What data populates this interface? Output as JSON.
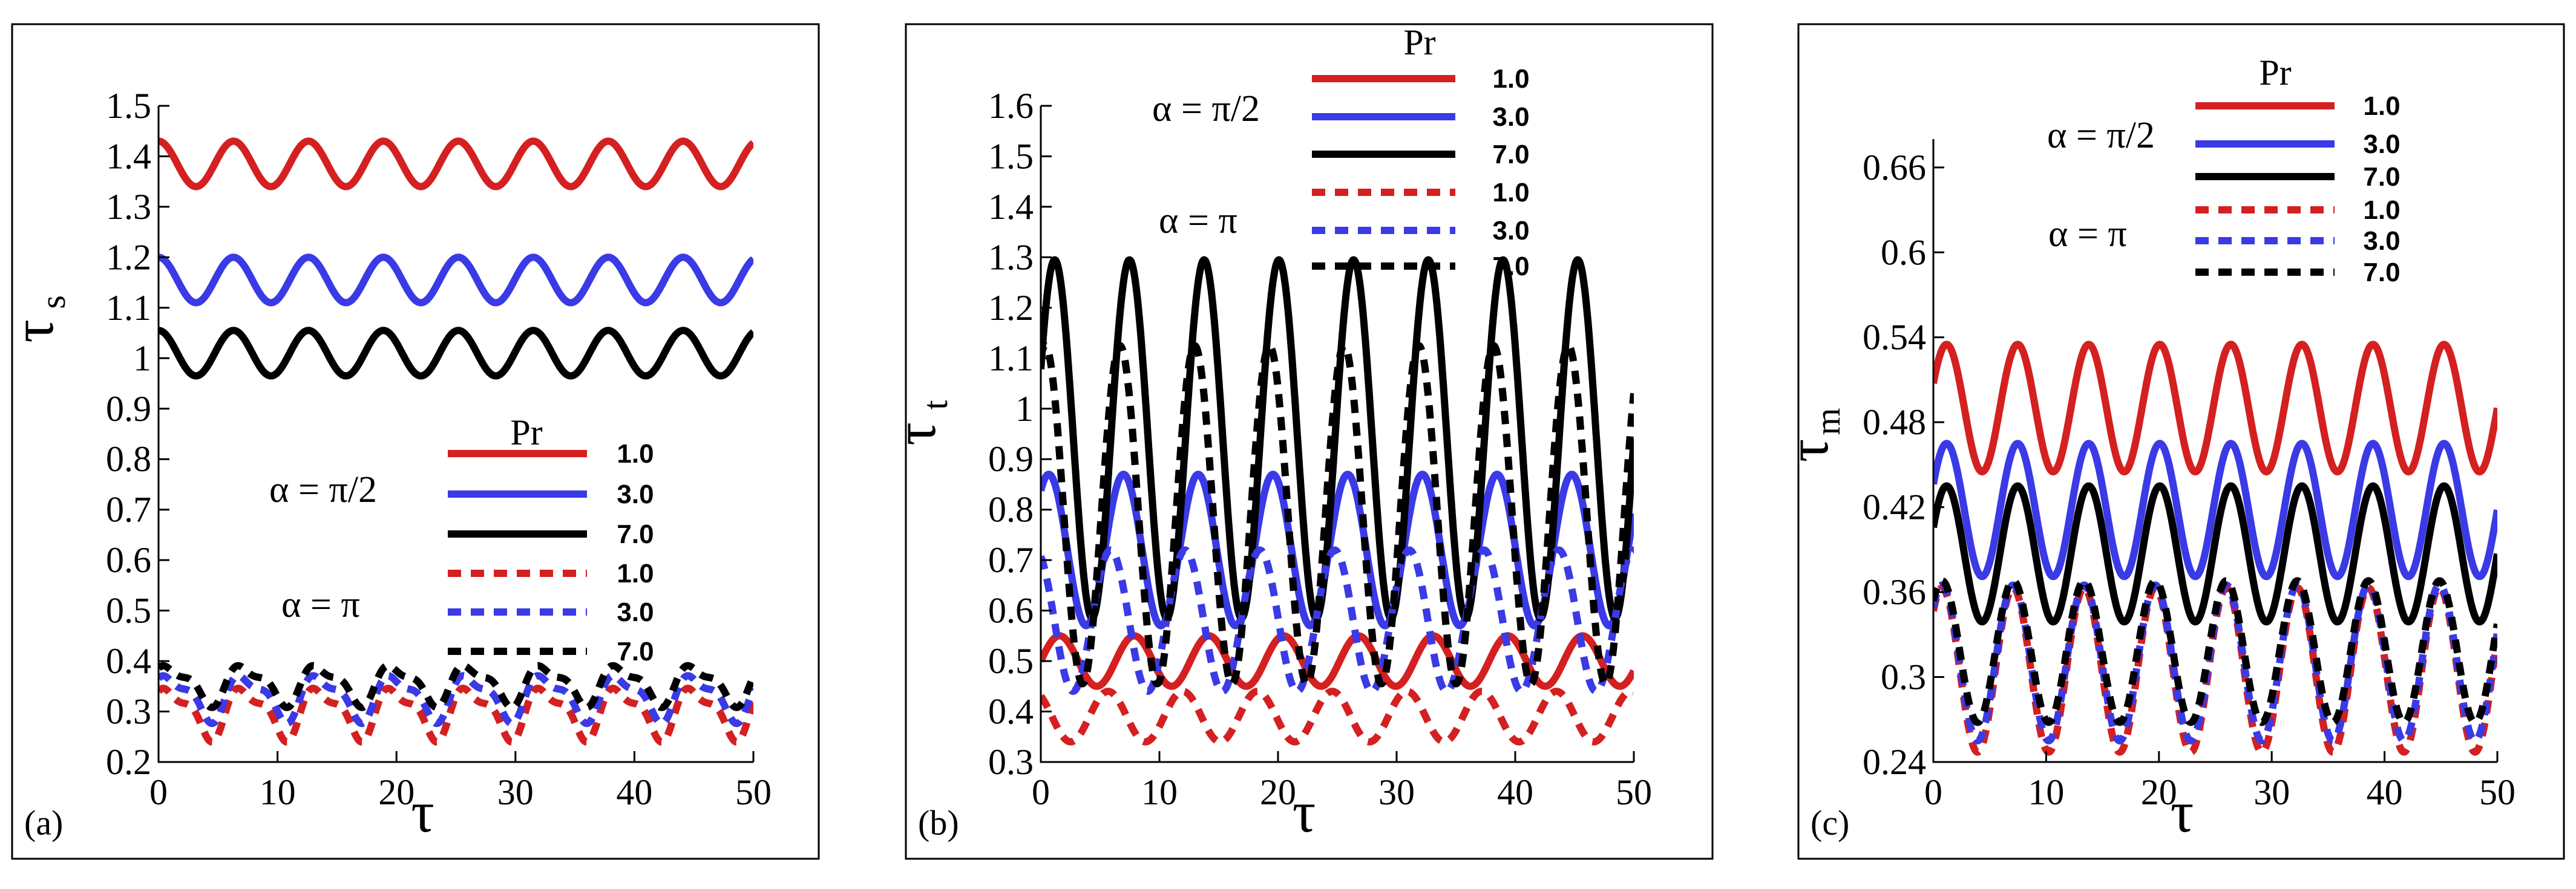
{
  "chart_data": [
    {
      "type": "line",
      "panel_label": "(a)",
      "xlabel": "τ",
      "ylabel": "τ",
      "ylabel_sub": "s",
      "xlim": [
        0,
        50
      ],
      "ylim": [
        0.2,
        1.5
      ],
      "xticks": [
        0,
        10,
        20,
        30,
        40,
        50
      ],
      "xtick_labels": [
        "0",
        "10",
        "20",
        "30",
        "40",
        "50"
      ],
      "yticks": [
        0.2,
        0.3,
        0.4,
        0.5,
        0.6,
        0.7,
        0.8,
        0.9,
        1.0,
        1.1,
        1.2,
        1.3,
        1.4,
        1.5
      ],
      "ytick_labels": [
        "0.2",
        "0.3",
        "0.4",
        "0.5",
        "0.6",
        "0.7",
        "0.8",
        "0.9",
        "1",
        "1.1",
        "1.2",
        "1.3",
        "1.4",
        "1.5"
      ],
      "legend_position": "middle-right",
      "legend": {
        "title": "Pr",
        "group1_label": "α = π/2",
        "group2_label": "α = π",
        "entries": [
          "1.0",
          "3.0",
          "7.0",
          "1.0",
          "3.0",
          "7.0"
        ]
      },
      "series": [
        {
          "name": "α = π/2, Pr = 1.0",
          "color": "#d42020",
          "style": "solid",
          "mean": 1.385,
          "amp": 0.045,
          "period": 6.3,
          "phase": 1.57,
          "harmonic": 0
        },
        {
          "name": "α = π/2, Pr = 3.0",
          "color": "#3a3ae6",
          "style": "solid",
          "mean": 1.155,
          "amp": 0.045,
          "period": 6.3,
          "phase": 1.57,
          "harmonic": 0
        },
        {
          "name": "α = π/2, Pr = 7.0",
          "color": "#000000",
          "style": "solid",
          "mean": 1.01,
          "amp": 0.045,
          "period": 6.3,
          "phase": 1.57,
          "harmonic": 0
        },
        {
          "name": "α = π, Pr = 1.0",
          "color": "#d42020",
          "style": "dashed",
          "mean": 0.3,
          "amp": 0.045,
          "period": 6.3,
          "phase": 0.5,
          "harmonic": 0.4
        },
        {
          "name": "α = π, Pr = 3.0",
          "color": "#3a3ae6",
          "style": "dashed",
          "mean": 0.33,
          "amp": 0.04,
          "period": 6.3,
          "phase": 0.5,
          "harmonic": 0.4
        },
        {
          "name": "α = π, Pr = 7.0",
          "color": "#000000",
          "style": "dashed",
          "mean": 0.355,
          "amp": 0.035,
          "period": 6.3,
          "phase": 0.5,
          "harmonic": 0.4
        }
      ]
    },
    {
      "type": "line",
      "panel_label": "(b)",
      "xlabel": "τ",
      "ylabel": "τ",
      "ylabel_sub": "t",
      "xlim": [
        0,
        50
      ],
      "ylim": [
        0.3,
        1.6
      ],
      "xticks": [
        0,
        10,
        20,
        30,
        40,
        50
      ],
      "xtick_labels": [
        "0",
        "10",
        "20",
        "30",
        "40",
        "50"
      ],
      "yticks": [
        0.3,
        0.4,
        0.5,
        0.6,
        0.7,
        0.8,
        0.9,
        1.0,
        1.1,
        1.2,
        1.3,
        1.4,
        1.5,
        1.6
      ],
      "ytick_labels": [
        "0.3",
        "0.4",
        "0.5",
        "0.6",
        "0.7",
        "0.8",
        "0.9",
        "1",
        "1.1",
        "1.2",
        "1.3",
        "1.4",
        "1.5",
        "1.6"
      ],
      "legend_position": "top-right",
      "legend": {
        "title": "Pr",
        "group1_label": "α = π/2",
        "group2_label": "α = π",
        "entries": [
          "1.0",
          "3.0",
          "7.0",
          "1.0",
          "3.0",
          "7.0"
        ]
      },
      "series": [
        {
          "name": "α = π/2, Pr = 1.0",
          "color": "#d42020",
          "style": "solid",
          "mean": 0.5,
          "amp": 0.05,
          "period": 6.3,
          "phase": 0.0,
          "harmonic": 0
        },
        {
          "name": "α = π/2, Pr = 3.0",
          "color": "#3a3ae6",
          "style": "solid",
          "mean": 0.72,
          "amp": 0.15,
          "period": 6.3,
          "phase": 0.9,
          "harmonic": 0
        },
        {
          "name": "α = π/2, Pr = 7.0",
          "color": "#000000",
          "style": "solid",
          "mean": 0.94,
          "amp": 0.355,
          "period": 6.3,
          "phase": 0.4,
          "harmonic": 0
        },
        {
          "name": "α = π, Pr = 1.0",
          "color": "#d42020",
          "style": "dashed",
          "mean": 0.39,
          "amp": 0.05,
          "period": 6.3,
          "phase": 2.2,
          "harmonic": 0
        },
        {
          "name": "α = π, Pr = 3.0",
          "color": "#3a3ae6",
          "style": "dashed",
          "mean": 0.58,
          "amp": 0.14,
          "period": 6.3,
          "phase": 2.0,
          "harmonic": 0
        },
        {
          "name": "α = π, Pr = 7.0",
          "color": "#000000",
          "style": "dashed",
          "mean": 0.79,
          "amp": 0.335,
          "period": 6.3,
          "phase": 1.2,
          "harmonic": 0
        }
      ]
    },
    {
      "type": "line",
      "panel_label": "(c)",
      "xlabel": "τ",
      "ylabel": "τ",
      "ylabel_sub": "m",
      "xlim": [
        0,
        50
      ],
      "ylim": [
        0.24,
        0.68
      ],
      "xticks": [
        0,
        10,
        20,
        30,
        40,
        50
      ],
      "xtick_labels": [
        "0",
        "10",
        "20",
        "30",
        "40",
        "50"
      ],
      "yticks": [
        0.24,
        0.3,
        0.36,
        0.42,
        0.48,
        0.54,
        0.6,
        0.66
      ],
      "ytick_labels": [
        "0.24",
        "0.3",
        "0.36",
        "0.42",
        "0.48",
        "0.54",
        "0.6",
        "0.66"
      ],
      "legend_position": "top-right",
      "legend": {
        "title": "Pr",
        "group1_label": "α = π/2",
        "group2_label": "α = π",
        "entries": [
          "1.0",
          "3.0",
          "7.0",
          "1.0",
          "3.0",
          "7.0"
        ]
      },
      "series": [
        {
          "name": "α = π/2, Pr = 1.0",
          "color": "#d42020",
          "style": "solid",
          "mean": 0.49,
          "amp": 0.045,
          "period": 6.3,
          "phase": 0.4,
          "harmonic": 0
        },
        {
          "name": "α = π/2, Pr = 3.0",
          "color": "#3a3ae6",
          "style": "solid",
          "mean": 0.418,
          "amp": 0.047,
          "period": 6.3,
          "phase": 0.4,
          "harmonic": 0
        },
        {
          "name": "α = π/2, Pr = 7.0",
          "color": "#000000",
          "style": "solid",
          "mean": 0.387,
          "amp": 0.048,
          "period": 6.3,
          "phase": 0.4,
          "harmonic": 0
        },
        {
          "name": "α = π, Pr = 1.0",
          "color": "#d42020",
          "style": "dashed",
          "mean": 0.305,
          "amp": 0.058,
          "period": 6.3,
          "phase": 0.8,
          "harmonic": 0
        },
        {
          "name": "α = π, Pr = 3.0",
          "color": "#3a3ae6",
          "style": "dashed",
          "mean": 0.31,
          "amp": 0.055,
          "period": 6.3,
          "phase": 0.8,
          "harmonic": 0
        },
        {
          "name": "α = π, Pr = 7.0",
          "color": "#000000",
          "style": "dashed",
          "mean": 0.318,
          "amp": 0.05,
          "period": 6.3,
          "phase": 0.8,
          "harmonic": 0
        }
      ]
    }
  ]
}
